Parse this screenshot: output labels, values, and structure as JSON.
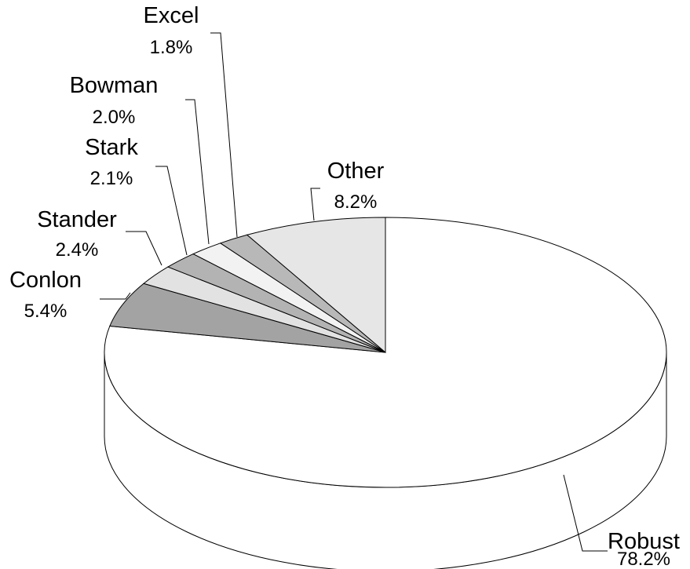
{
  "chart_data": {
    "type": "pie",
    "three_d": true,
    "labels": [
      "Robust",
      "Conlon",
      "Stander",
      "Stark",
      "Bowman",
      "Excel",
      "Other"
    ],
    "values": [
      78.2,
      5.4,
      2.4,
      2.1,
      2.0,
      1.8,
      8.2
    ],
    "value_labels": [
      "78.2%",
      "5.4%",
      "2.4%",
      "2.1%",
      "2.0%",
      "1.8%",
      "8.2%"
    ],
    "colors": [
      "#ffffff",
      "#a3a3a3",
      "#e2e2e2",
      "#b3b3b3",
      "#f2f2f2",
      "#b8b8b8",
      "#e6e6e6"
    ],
    "start_angle_deg": 90,
    "direction": "clockwise",
    "legend": "none",
    "data_labels": "outside-with-leader-lines"
  }
}
